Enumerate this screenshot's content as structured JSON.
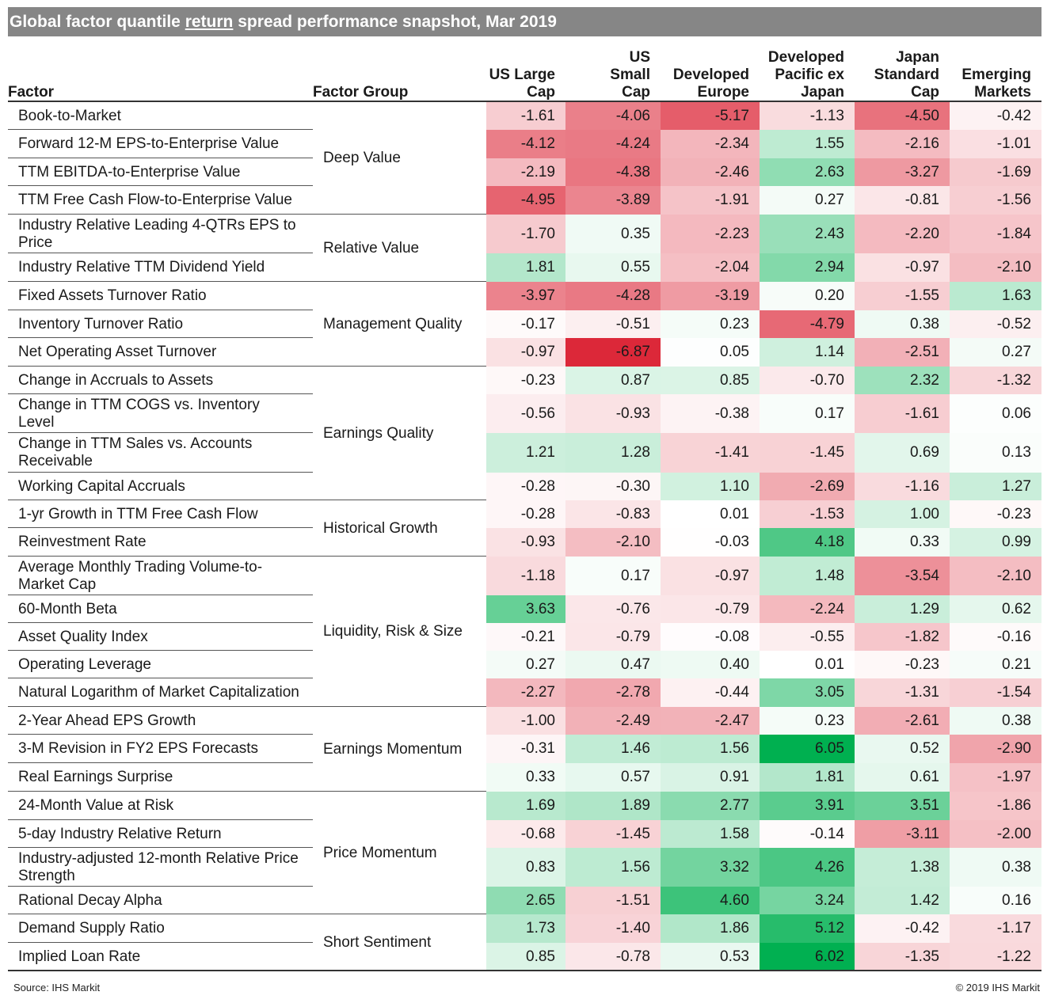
{
  "title": {
    "before": "Global factor quantile ",
    "underlined": "return",
    "after": " spread performance snapshot, Mar 2019"
  },
  "source": "Source: IHS Markit",
  "copyright": "© 2019 IHS Markit",
  "colors": {
    "title_bg": "#868686",
    "negative": "#dc2839",
    "positive": "#00b050",
    "neutral": "#ffffff"
  },
  "chart_data": {
    "type": "table",
    "column_headers": {
      "factor": "Factor",
      "group": "Factor Group",
      "regions": [
        [
          "US Large",
          "Cap"
        ],
        [
          "US",
          "Small",
          "Cap"
        ],
        [
          "Developed",
          "Europe"
        ],
        [
          "Developed",
          "Pacific ex",
          "Japan"
        ],
        [
          "Japan",
          "Standard",
          "Cap"
        ],
        [
          "Emerging",
          "Markets"
        ]
      ]
    },
    "groups": [
      {
        "name": "Deep Value",
        "rows": [
          {
            "factor": "Book-to-Market",
            "values": [
              -1.61,
              -4.06,
              -5.17,
              -1.13,
              -4.5,
              -0.42
            ]
          },
          {
            "factor": "Forward 12-M EPS-to-Enterprise Value",
            "values": [
              -4.12,
              -4.24,
              -2.34,
              1.55,
              -2.16,
              -1.01
            ]
          },
          {
            "factor": "TTM EBITDA-to-Enterprise Value",
            "values": [
              -2.19,
              -4.38,
              -2.46,
              2.63,
              -3.27,
              -1.69
            ]
          },
          {
            "factor": "TTM Free Cash Flow-to-Enterprise Value",
            "values": [
              -4.95,
              -3.89,
              -1.91,
              0.27,
              -0.81,
              -1.56
            ]
          }
        ]
      },
      {
        "name": "Relative Value",
        "rows": [
          {
            "factor": "Industry Relative Leading 4-QTRs EPS to Price",
            "values": [
              -1.7,
              0.35,
              -2.23,
              2.43,
              -2.2,
              -1.84
            ]
          },
          {
            "factor": "Industry Relative TTM Dividend Yield",
            "values": [
              1.81,
              0.55,
              -2.04,
              2.94,
              -0.97,
              -2.1
            ]
          }
        ]
      },
      {
        "name": "Management Quality",
        "rows": [
          {
            "factor": "Fixed Assets Turnover Ratio",
            "values": [
              -3.97,
              -4.28,
              -3.19,
              0.2,
              -1.55,
              1.63
            ]
          },
          {
            "factor": "Inventory Turnover Ratio",
            "values": [
              -0.17,
              -0.51,
              0.23,
              -4.79,
              0.38,
              -0.52
            ]
          },
          {
            "factor": "Net Operating Asset Turnover",
            "values": [
              -0.97,
              -6.87,
              0.05,
              1.14,
              -2.51,
              0.27
            ]
          }
        ]
      },
      {
        "name": "Earnings Quality",
        "rows": [
          {
            "factor": "Change in Accruals to Assets",
            "values": [
              -0.23,
              0.87,
              0.85,
              -0.7,
              2.32,
              -1.32
            ]
          },
          {
            "factor": "Change in TTM COGS vs. Inventory Level",
            "values": [
              -0.56,
              -0.93,
              -0.38,
              0.17,
              -1.61,
              0.06
            ]
          },
          {
            "factor": "Change in TTM Sales vs. Accounts Receivable",
            "values": [
              1.21,
              1.28,
              -1.41,
              -1.45,
              0.69,
              0.13
            ]
          },
          {
            "factor": "Working Capital Accruals",
            "values": [
              -0.28,
              -0.3,
              1.1,
              -2.69,
              -1.16,
              1.27
            ]
          }
        ]
      },
      {
        "name": "Historical Growth",
        "rows": [
          {
            "factor": "1-yr Growth in TTM Free Cash Flow",
            "values": [
              -0.28,
              -0.83,
              0.01,
              -1.53,
              1.0,
              -0.23
            ]
          },
          {
            "factor": "Reinvestment Rate",
            "values": [
              -0.93,
              -2.1,
              -0.03,
              4.18,
              0.33,
              0.99
            ]
          }
        ]
      },
      {
        "name": "Liquidity, Risk & Size",
        "rows": [
          {
            "factor": "Average Monthly Trading Volume-to-Market Cap",
            "values": [
              -1.18,
              0.17,
              -0.97,
              1.48,
              -3.54,
              -2.1
            ]
          },
          {
            "factor": "60-Month Beta",
            "values": [
              3.63,
              -0.76,
              -0.79,
              -2.24,
              1.29,
              0.62
            ]
          },
          {
            "factor": "Asset Quality Index",
            "values": [
              -0.21,
              -0.79,
              -0.08,
              -0.55,
              -1.82,
              -0.16
            ]
          },
          {
            "factor": "Operating Leverage",
            "values": [
              0.27,
              0.47,
              0.4,
              0.01,
              -0.23,
              0.21
            ]
          },
          {
            "factor": "Natural Logarithm of Market Capitalization",
            "values": [
              -2.27,
              -2.78,
              -0.44,
              3.05,
              -1.31,
              -1.54
            ]
          }
        ]
      },
      {
        "name": "Earnings Momentum",
        "rows": [
          {
            "factor": "2-Year Ahead EPS Growth",
            "values": [
              -1.0,
              -2.49,
              -2.47,
              0.23,
              -2.61,
              0.38
            ]
          },
          {
            "factor": "3-M Revision in FY2 EPS Forecasts",
            "values": [
              -0.31,
              1.46,
              1.56,
              6.05,
              0.52,
              -2.9
            ]
          },
          {
            "factor": "Real Earnings Surprise",
            "values": [
              0.33,
              0.57,
              0.91,
              1.81,
              0.61,
              -1.97
            ]
          }
        ]
      },
      {
        "name": "Price Momentum",
        "rows": [
          {
            "factor": "24-Month Value at Risk",
            "values": [
              1.69,
              1.89,
              2.77,
              3.91,
              3.51,
              -1.86
            ]
          },
          {
            "factor": "5-day Industry Relative Return",
            "values": [
              -0.68,
              -1.45,
              1.58,
              -0.14,
              -3.11,
              -2.0
            ]
          },
          {
            "factor": "Industry-adjusted 12-month Relative Price Strength",
            "values": [
              0.83,
              1.56,
              3.32,
              4.26,
              1.38,
              0.38
            ]
          },
          {
            "factor": "Rational Decay Alpha",
            "values": [
              2.65,
              -1.51,
              4.6,
              3.24,
              1.42,
              0.16
            ]
          }
        ]
      },
      {
        "name": "Short Sentiment",
        "rows": [
          {
            "factor": "Demand Supply Ratio",
            "values": [
              1.73,
              -1.4,
              1.86,
              5.12,
              -0.42,
              -1.17
            ]
          },
          {
            "factor": "Implied Loan Rate",
            "values": [
              0.85,
              -0.78,
              0.53,
              6.02,
              -1.35,
              -1.22
            ]
          }
        ]
      }
    ]
  }
}
